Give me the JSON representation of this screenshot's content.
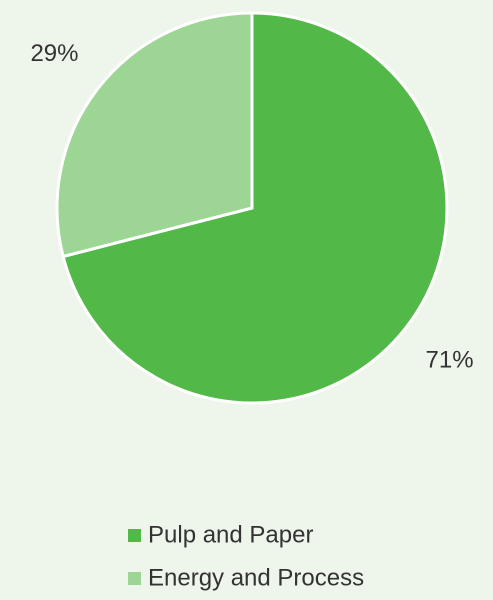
{
  "chart_data": {
    "type": "pie",
    "categories": [
      "Pulp and Paper",
      "Energy and Process"
    ],
    "values": [
      71,
      29
    ],
    "value_labels": [
      "71%",
      "29%"
    ],
    "colors": [
      "#52b848",
      "#9dd595"
    ],
    "legend": "bottom"
  }
}
